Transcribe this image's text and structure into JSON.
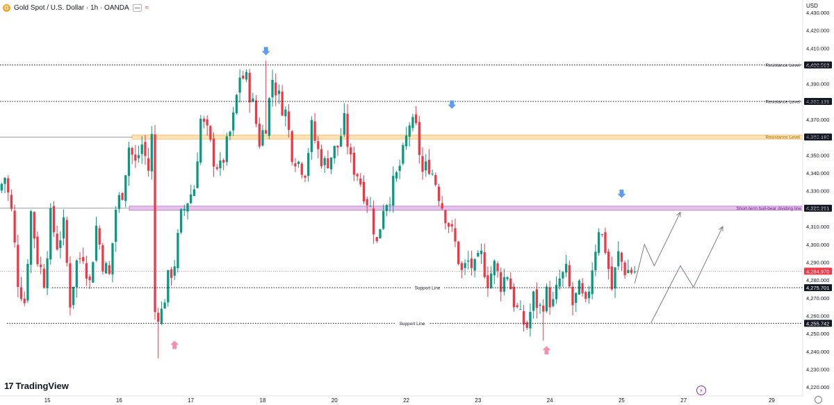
{
  "header": {
    "symbol": "Gold Spot / U.S. Dollar · 1h · OANDA",
    "logo_letter": "G",
    "currency": "USD",
    "brand": "TradingView",
    "brand_mark": "17",
    "alert_glyph": "⚡"
  },
  "chart_data": {
    "type": "candlestick",
    "ylim": [
      4215,
      4437
    ],
    "y_ticks": [
      4220,
      4230,
      4240,
      4250,
      4260,
      4270,
      4280,
      4290,
      4300,
      4310,
      4320,
      4330,
      4340,
      4350,
      4360,
      4370,
      4380,
      4390,
      4400,
      4410,
      4420,
      4430
    ],
    "x_ticks": [
      {
        "label": "15",
        "bar": 14
      },
      {
        "label": "16",
        "bar": 36
      },
      {
        "label": "17",
        "bar": 58
      },
      {
        "label": "18",
        "bar": 80
      },
      {
        "label": "20",
        "bar": 102
      },
      {
        "label": "22",
        "bar": 124
      },
      {
        "label": "23",
        "bar": 146
      },
      {
        "label": "24",
        "bar": 168
      },
      {
        "label": "25",
        "bar": 190
      },
      {
        "label": "27",
        "bar": 209
      },
      {
        "label": "29",
        "bar": 236
      }
    ],
    "bars_total_visible": 246,
    "colors": {
      "up": "#089981",
      "down": "#f23645",
      "resistance": "#ff9800",
      "divider": "#9c27b0",
      "arrow_down": "#5b9cf6",
      "arrow_up": "#f48fb1",
      "projection": "#787b86"
    },
    "levels": [
      {
        "label": "Resistance Level",
        "price": 4400.563,
        "price_label": "4,400.563",
        "style": "dotted"
      },
      {
        "label": "Resistance Level",
        "price": 4380.139,
        "price_label": "4,380.139",
        "style": "dotted"
      },
      {
        "label": "Resistance Level",
        "price": 4360.18,
        "price_label": "4,360.180",
        "style": "band-orange"
      },
      {
        "label": "Short-term bull-bear dividing line",
        "price": 4320.261,
        "price_label": "4,320.261",
        "style": "band-purple"
      },
      {
        "label": "Support Line",
        "price": 4275.701,
        "price_label": "4,275.701",
        "style": "dotted"
      },
      {
        "label": "Support Line",
        "price": 4255.742,
        "price_label": "4,255.742",
        "style": "dotted"
      }
    ],
    "current_price": {
      "price": 4284.97,
      "label": "4,284.970"
    },
    "ohlc_keypoints": [
      [
        0,
        4330
      ],
      [
        2,
        4338
      ],
      [
        4,
        4318
      ],
      [
        6,
        4280
      ],
      [
        8,
        4268
      ],
      [
        10,
        4318
      ],
      [
        12,
        4292
      ],
      [
        14,
        4280
      ],
      [
        16,
        4315
      ],
      [
        18,
        4300
      ],
      [
        20,
        4310
      ],
      [
        22,
        4268
      ],
      [
        24,
        4290
      ],
      [
        26,
        4295
      ],
      [
        28,
        4278
      ],
      [
        30,
        4310
      ],
      [
        32,
        4290
      ],
      [
        34,
        4282
      ],
      [
        36,
        4320
      ],
      [
        38,
        4330
      ],
      [
        40,
        4355
      ],
      [
        42,
        4345
      ],
      [
        44,
        4356
      ],
      [
        46,
        4342
      ],
      [
        47,
        4360
      ],
      [
        48,
        4262
      ],
      [
        50,
        4262
      ],
      [
        52,
        4280
      ],
      [
        54,
        4290
      ],
      [
        56,
        4315
      ],
      [
        58,
        4325
      ],
      [
        60,
        4332
      ],
      [
        62,
        4370
      ],
      [
        64,
        4362
      ],
      [
        66,
        4348
      ],
      [
        68,
        4342
      ],
      [
        70,
        4355
      ],
      [
        72,
        4370
      ],
      [
        74,
        4395
      ],
      [
        76,
        4392
      ],
      [
        78,
        4378
      ],
      [
        80,
        4358
      ],
      [
        82,
        4368
      ],
      [
        84,
        4393
      ],
      [
        86,
        4382
      ],
      [
        88,
        4374
      ],
      [
        90,
        4352
      ],
      [
        92,
        4346
      ],
      [
        94,
        4342
      ],
      [
        96,
        4365
      ],
      [
        98,
        4352
      ],
      [
        100,
        4345
      ],
      [
        102,
        4350
      ],
      [
        104,
        4355
      ],
      [
        106,
        4368
      ],
      [
        108,
        4346
      ],
      [
        110,
        4340
      ],
      [
        112,
        4330
      ],
      [
        114,
        4320
      ],
      [
        116,
        4300
      ],
      [
        118,
        4322
      ],
      [
        120,
        4328
      ],
      [
        122,
        4338
      ],
      [
        124,
        4350
      ],
      [
        126,
        4368
      ],
      [
        128,
        4364
      ],
      [
        130,
        4340
      ],
      [
        132,
        4345
      ],
      [
        134,
        4335
      ],
      [
        136,
        4322
      ],
      [
        138,
        4312
      ],
      [
        140,
        4300
      ],
      [
        142,
        4284
      ],
      [
        144,
        4290
      ],
      [
        146,
        4286
      ],
      [
        148,
        4293
      ],
      [
        150,
        4280
      ],
      [
        152,
        4288
      ],
      [
        154,
        4278
      ],
      [
        156,
        4284
      ],
      [
        158,
        4268
      ],
      [
        160,
        4258
      ],
      [
        162,
        4254
      ],
      [
        164,
        4270
      ],
      [
        166,
        4264
      ],
      [
        168,
        4272
      ],
      [
        170,
        4266
      ],
      [
        172,
        4280
      ],
      [
        174,
        4284
      ],
      [
        176,
        4266
      ],
      [
        178,
        4274
      ],
      [
        180,
        4264
      ],
      [
        182,
        4288
      ],
      [
        184,
        4310
      ],
      [
        186,
        4298
      ],
      [
        188,
        4275
      ],
      [
        190,
        4294
      ],
      [
        192,
        4286
      ],
      [
        194,
        4285
      ]
    ],
    "projection_path": [
      {
        "bar": 194,
        "price": 4278
      },
      {
        "bar": 197,
        "price": 4300
      },
      {
        "bar": 200,
        "price": 4288
      },
      {
        "bar": 208,
        "price": 4318
      }
    ],
    "projection_path_2": [
      {
        "bar": 199,
        "price": 4256
      },
      {
        "bar": 208,
        "price": 4288
      },
      {
        "bar": 212,
        "price": 4276
      },
      {
        "bar": 221,
        "price": 4310
      }
    ],
    "markers": [
      {
        "type": "down",
        "bar": 81,
        "price": 4406
      },
      {
        "type": "down",
        "bar": 138,
        "price": 4376
      },
      {
        "type": "down",
        "bar": 190,
        "price": 4326
      },
      {
        "type": "up",
        "bar": 53,
        "price": 4246
      },
      {
        "type": "up",
        "bar": 167,
        "price": 4243
      }
    ]
  }
}
